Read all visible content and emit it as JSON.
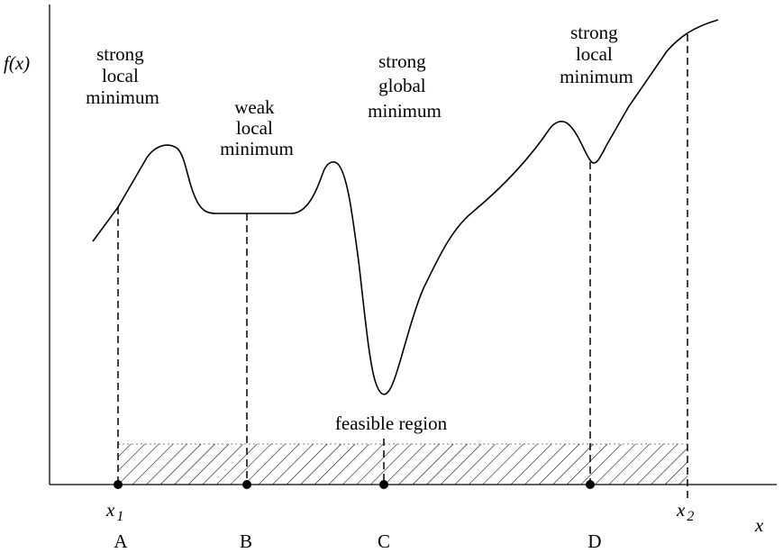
{
  "axes": {
    "y_label": "f(x)",
    "x_label": "x"
  },
  "annotations": {
    "strong_local_min_left": [
      "strong",
      "local",
      "minimum"
    ],
    "weak_local_min": [
      "weak",
      "local",
      "minimum"
    ],
    "strong_global_min": [
      "strong",
      "global",
      "minimum"
    ],
    "strong_local_min_right": [
      "strong",
      "local",
      "minimum"
    ],
    "feasible_region": "feasible region"
  },
  "bounds": {
    "x1": {
      "base": "x",
      "sub": "1"
    },
    "x2": {
      "base": "x",
      "sub": "2"
    }
  },
  "points": [
    "A",
    "B",
    "C",
    "D"
  ],
  "colors": {
    "ink": "#000000",
    "background": "#ffffff"
  }
}
